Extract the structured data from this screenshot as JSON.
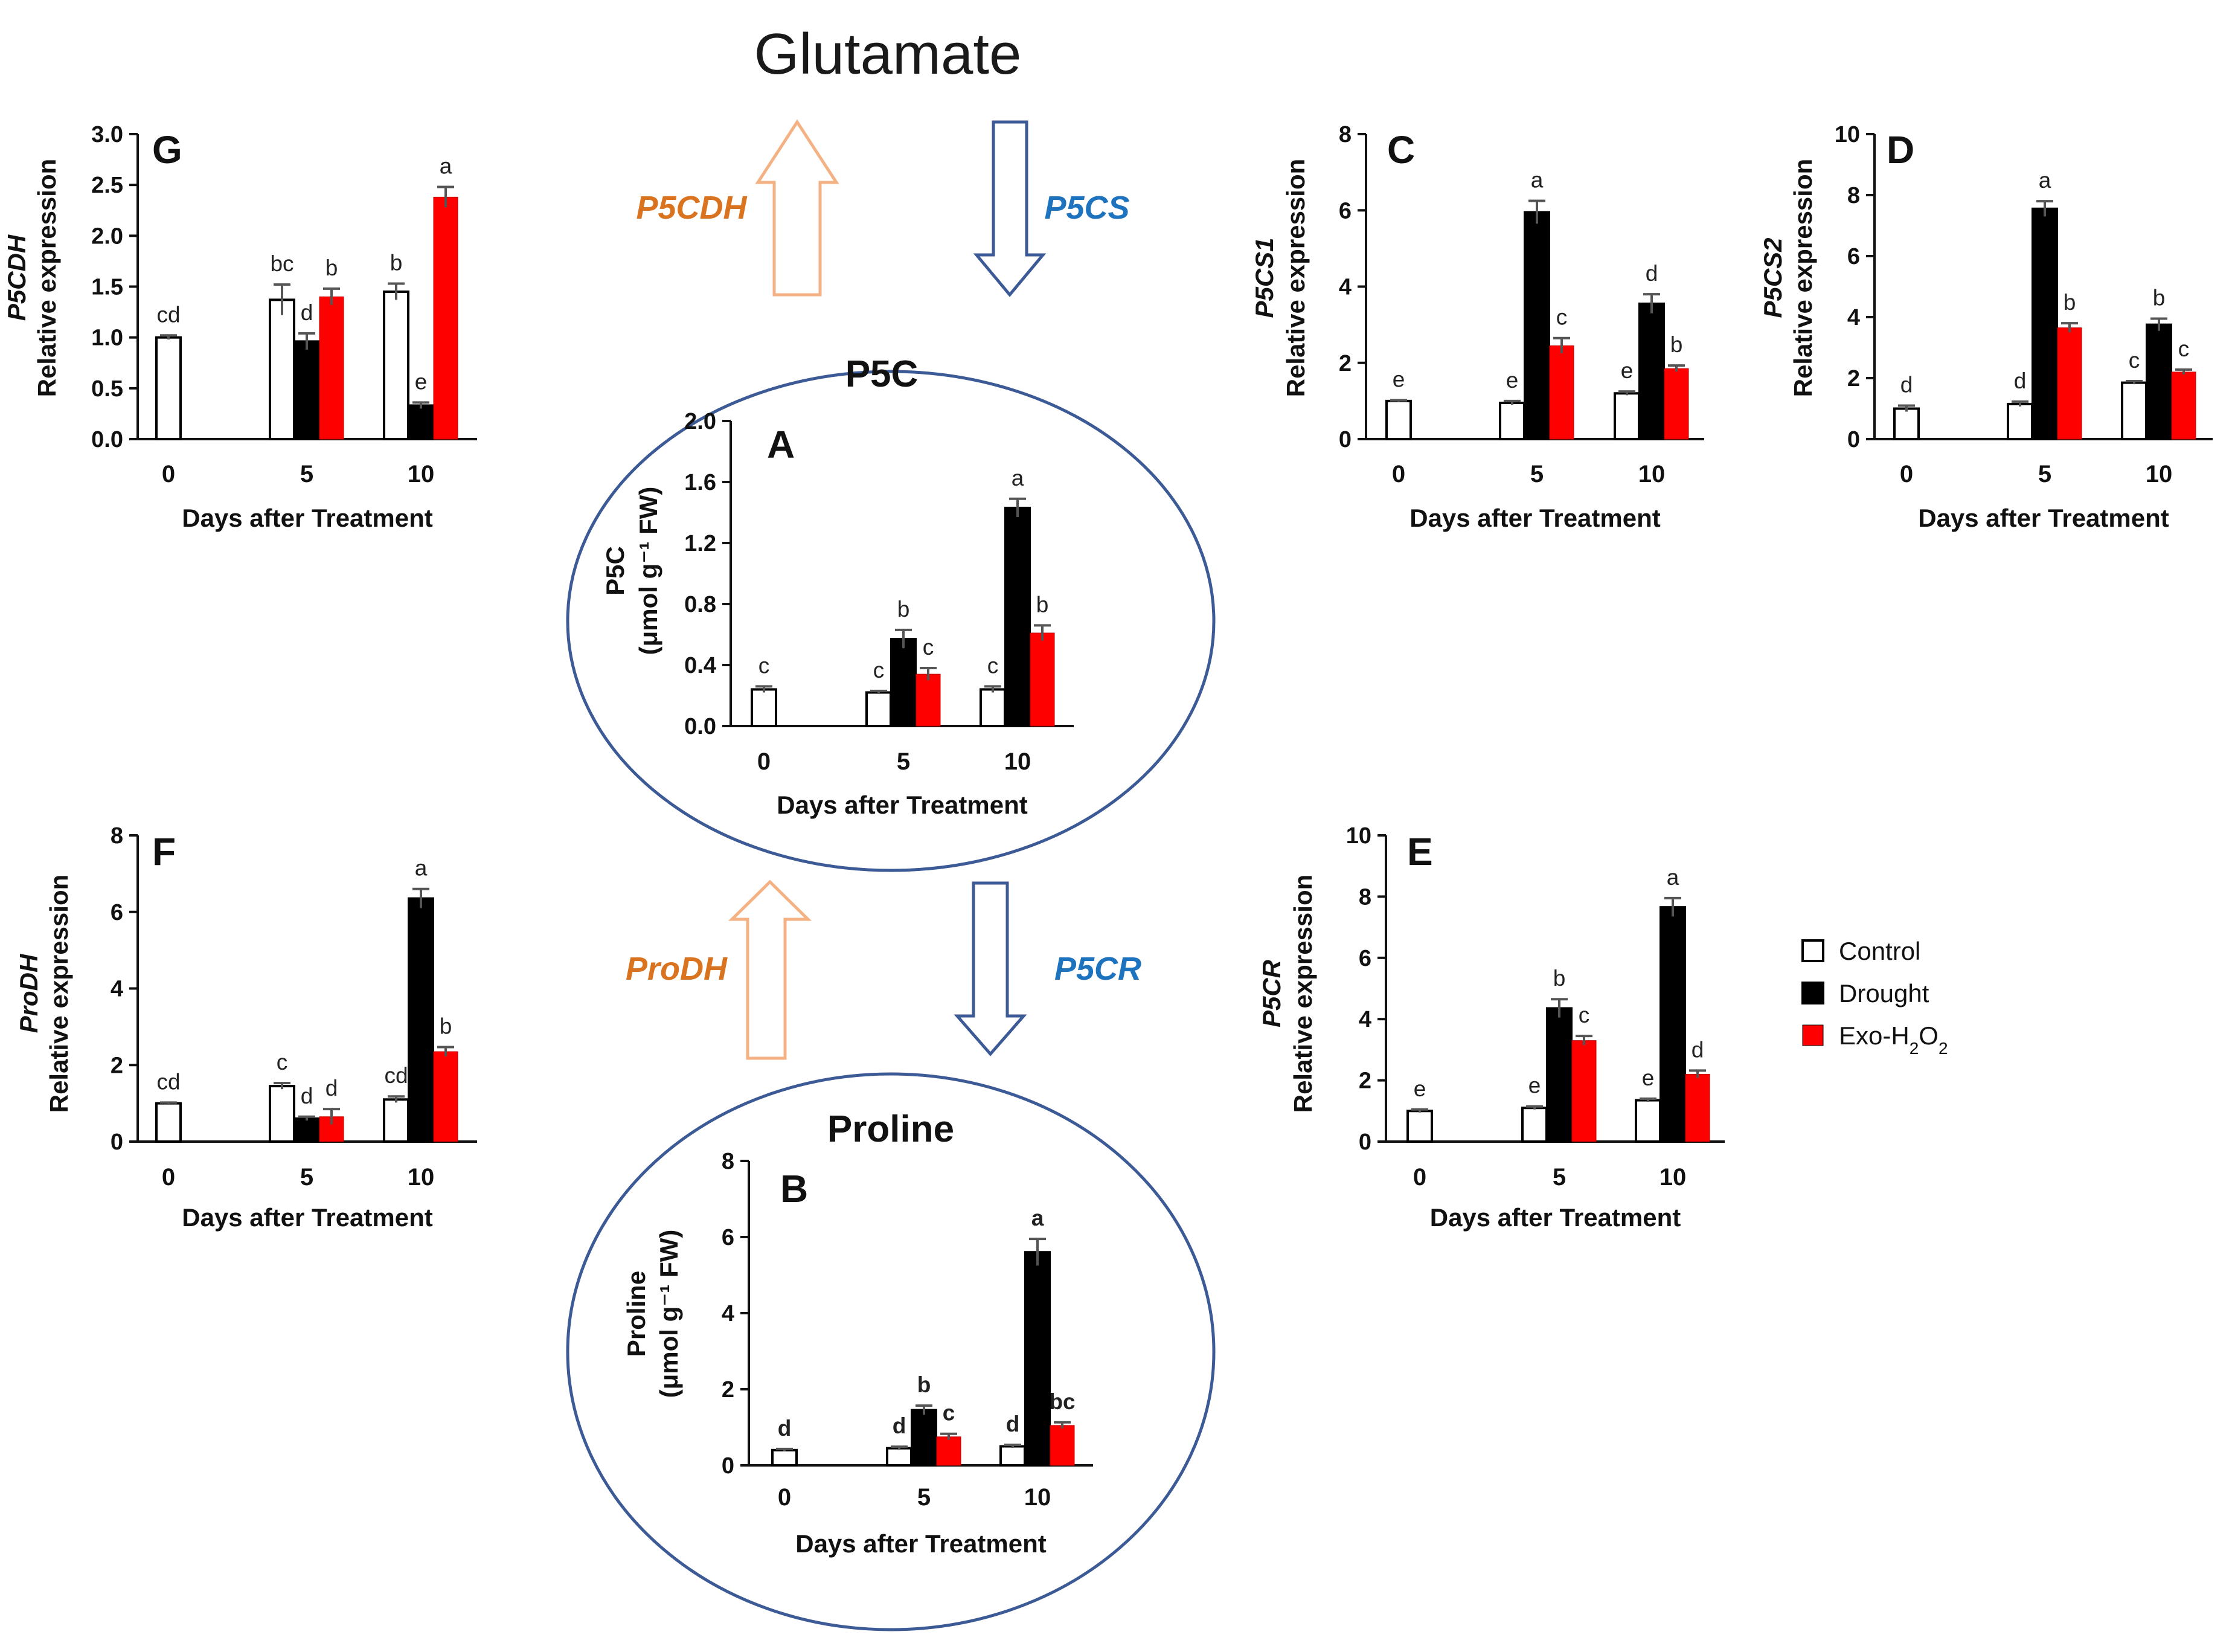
{
  "title": "Glutamate",
  "circles": {
    "p5c": "P5C",
    "proline": "Proline"
  },
  "arrows": {
    "p5cdh": "P5CDH",
    "p5cs": "P5CS",
    "prodh": "ProDH",
    "p5cr": "P5CR"
  },
  "colors": {
    "control": "#ffffff",
    "drought": "#000000",
    "exo": "#ff0000",
    "catabolic": "#d9731f",
    "synthetic": "#1e73be",
    "circle": "#3c5a96",
    "arrow_catabolic": "#f4b183",
    "arrow_synthetic": "#3c5a96"
  },
  "legend": {
    "control": "Control",
    "drought": "Drought",
    "exo_prefix": "Exo-H",
    "exo_sub1": "2",
    "exo_mid": "O",
    "exo_sub2": "2"
  },
  "chart_data": [
    {
      "id": "G",
      "type": "bar",
      "letter": "G",
      "categories": [
        "0",
        "5",
        "10"
      ],
      "series_names": [
        "Control",
        "Drought",
        "Exo-H2O2"
      ],
      "values": [
        [
          1.0,
          null,
          null
        ],
        [
          1.37,
          0.96,
          1.4
        ],
        [
          1.45,
          0.33,
          2.38
        ]
      ],
      "errors": [
        [
          0.02,
          0,
          0
        ],
        [
          0.15,
          0.08,
          0.08
        ],
        [
          0.08,
          0.03,
          0.1
        ]
      ],
      "sig": [
        [
          "cd",
          "",
          ""
        ],
        [
          "bc",
          "d",
          "b"
        ],
        [
          "b",
          "e",
          "a"
        ]
      ],
      "ylim": [
        0,
        3
      ],
      "yticks": [
        "0.0",
        "0.5",
        "1.0",
        "1.5",
        "2.0",
        "2.5",
        "3.0"
      ],
      "ytick_values": [
        0,
        0.5,
        1,
        1.5,
        2,
        2.5,
        3
      ],
      "ylabel_gene": "P5CDH",
      "ylabel": "Relative expression",
      "xlabel": "Days after Treatment"
    },
    {
      "id": "C",
      "type": "bar",
      "letter": "C",
      "categories": [
        "0",
        "5",
        "10"
      ],
      "series_names": [
        "Control",
        "Drought",
        "Exo-H2O2"
      ],
      "values": [
        [
          1.0,
          null,
          null
        ],
        [
          0.95,
          5.95,
          2.45
        ],
        [
          1.2,
          3.55,
          1.85
        ]
      ],
      "errors": [
        [
          0.02,
          0,
          0
        ],
        [
          0.05,
          0.3,
          0.2
        ],
        [
          0.05,
          0.25,
          0.08
        ]
      ],
      "sig": [
        [
          "e",
          "",
          ""
        ],
        [
          "e",
          "a",
          "c"
        ],
        [
          "e",
          "d",
          "b"
        ]
      ],
      "ylim": [
        0,
        8
      ],
      "yticks": [
        "0",
        "2",
        "4",
        "6",
        "8"
      ],
      "ytick_values": [
        0,
        2,
        4,
        6,
        8
      ],
      "ylabel_gene": "P5CS1",
      "ylabel": "Relative expression",
      "xlabel": "Days after Treatment"
    },
    {
      "id": "D",
      "type": "bar",
      "letter": "D",
      "categories": [
        "0",
        "5",
        "10"
      ],
      "series_names": [
        "Control",
        "Drought",
        "Exo-H2O2"
      ],
      "values": [
        [
          1.0,
          null,
          null
        ],
        [
          1.15,
          7.55,
          3.65
        ],
        [
          1.85,
          3.75,
          2.2
        ]
      ],
      "errors": [
        [
          0.1,
          0,
          0
        ],
        [
          0.08,
          0.25,
          0.15
        ],
        [
          0.05,
          0.2,
          0.08
        ]
      ],
      "sig": [
        [
          "d",
          "",
          ""
        ],
        [
          "d",
          "a",
          "b"
        ],
        [
          "c",
          "b",
          "c"
        ]
      ],
      "ylim": [
        0,
        10
      ],
      "yticks": [
        "0",
        "2",
        "4",
        "6",
        "8",
        "10"
      ],
      "ytick_values": [
        0,
        2,
        4,
        6,
        8,
        10
      ],
      "ylabel_gene": "P5CS2",
      "ylabel": "Relative expression",
      "xlabel": "Days after Treatment"
    },
    {
      "id": "A",
      "type": "bar",
      "letter": "A",
      "categories": [
        "0",
        "5",
        "10"
      ],
      "series_names": [
        "Control",
        "Drought",
        "Exo-H2O2"
      ],
      "values": [
        [
          0.24,
          null,
          null
        ],
        [
          0.22,
          0.57,
          0.34
        ],
        [
          0.24,
          1.43,
          0.61
        ]
      ],
      "errors": [
        [
          0.02,
          0,
          0
        ],
        [
          0.01,
          0.06,
          0.04
        ],
        [
          0.02,
          0.06,
          0.05
        ]
      ],
      "sig": [
        [
          "c",
          "",
          ""
        ],
        [
          "c",
          "b",
          "c"
        ],
        [
          "c",
          "a",
          "b"
        ]
      ],
      "ylim": [
        0,
        2
      ],
      "yticks": [
        "0.0",
        "0.4",
        "0.8",
        "1.2",
        "1.6",
        "2.0"
      ],
      "ytick_values": [
        0,
        0.4,
        0.8,
        1.2,
        1.6,
        2.0
      ],
      "ylabel_gene": "P5C",
      "ylabel": "(μmol g⁻¹ FW)",
      "xlabel": "Days after Treatment"
    },
    {
      "id": "F",
      "type": "bar",
      "letter": "F",
      "categories": [
        "0",
        "5",
        "10"
      ],
      "series_names": [
        "Control",
        "Drought",
        "Exo-H2O2"
      ],
      "values": [
        [
          1.0,
          null,
          null
        ],
        [
          1.45,
          0.6,
          0.65
        ],
        [
          1.1,
          6.35,
          2.35
        ]
      ],
      "errors": [
        [
          0.02,
          0,
          0
        ],
        [
          0.08,
          0.05,
          0.2
        ],
        [
          0.08,
          0.25,
          0.12
        ]
      ],
      "sig": [
        [
          "cd",
          "",
          ""
        ],
        [
          "c",
          "d",
          "d"
        ],
        [
          "cd",
          "a",
          "b"
        ]
      ],
      "ylim": [
        0,
        8
      ],
      "yticks": [
        "0",
        "2",
        "4",
        "6",
        "8"
      ],
      "ytick_values": [
        0,
        2,
        4,
        6,
        8
      ],
      "ylabel_gene": "ProDH",
      "ylabel": "Relative expression",
      "xlabel": "Days after Treatment"
    },
    {
      "id": "E",
      "type": "bar",
      "letter": "E",
      "categories": [
        "0",
        "5",
        "10"
      ],
      "series_names": [
        "Control",
        "Drought",
        "Exo-H2O2"
      ],
      "values": [
        [
          1.0,
          null,
          null
        ],
        [
          1.1,
          4.35,
          3.3
        ],
        [
          1.35,
          7.65,
          2.2
        ]
      ],
      "errors": [
        [
          0.05,
          0,
          0
        ],
        [
          0.05,
          0.3,
          0.15
        ],
        [
          0.05,
          0.3,
          0.12
        ]
      ],
      "sig": [
        [
          "e",
          "",
          ""
        ],
        [
          "e",
          "b",
          "c"
        ],
        [
          "e",
          "a",
          "d"
        ]
      ],
      "ylim": [
        0,
        10
      ],
      "yticks": [
        "0",
        "2",
        "4",
        "6",
        "8",
        "10"
      ],
      "ytick_values": [
        0,
        2,
        4,
        6,
        8,
        10
      ],
      "ylabel_gene": "P5CR",
      "ylabel": "Relative expression",
      "xlabel": "Days after Treatment"
    },
    {
      "id": "B",
      "type": "bar",
      "letter": "B",
      "categories": [
        "0",
        "5",
        "10"
      ],
      "series_names": [
        "Control",
        "Drought",
        "Exo-H2O2"
      ],
      "values": [
        [
          0.4,
          null,
          null
        ],
        [
          0.45,
          1.45,
          0.75
        ],
        [
          0.5,
          5.6,
          1.05
        ]
      ],
      "errors": [
        [
          0.03,
          0,
          0
        ],
        [
          0.04,
          0.12,
          0.08
        ],
        [
          0.04,
          0.35,
          0.08
        ]
      ],
      "sig": [
        [
          "d",
          "",
          ""
        ],
        [
          "d",
          "b",
          "c"
        ],
        [
          "d",
          "a",
          "bc"
        ]
      ],
      "ylim": [
        0,
        8
      ],
      "yticks": [
        "0",
        "2",
        "4",
        "6",
        "8"
      ],
      "ytick_values": [
        0,
        2,
        4,
        6,
        8
      ],
      "ylabel_gene": "Proline",
      "ylabel": "(μmol g⁻¹ FW)",
      "xlabel": "Days after Treatment"
    }
  ]
}
